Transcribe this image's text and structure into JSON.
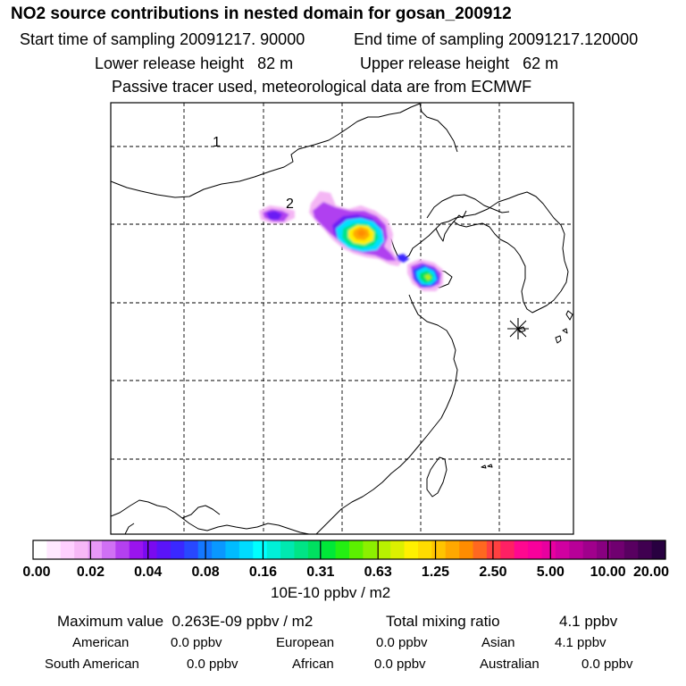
{
  "header": {
    "title": "NO2 source contributions in nested domain for gosan_200912",
    "start_time": "Start time of sampling 20091217. 90000",
    "end_time": "End time of sampling 20091217.120000",
    "lower_release": "Lower release height   82 m",
    "upper_release": "Upper release height   62 m",
    "tracer_note": "Passive tracer used, meteorological data are from ECMWF"
  },
  "map": {
    "labels": [
      {
        "id": "source-marker-2",
        "text": "2"
      },
      {
        "id": "source-marker-1",
        "text": "1"
      }
    ],
    "receptor": "star-marker",
    "gridlines": "dashed"
  },
  "colorbar": {
    "tick_labels": [
      "0.00",
      "0.02",
      "0.04",
      "0.08",
      "0.16",
      "0.31",
      "0.63",
      "1.25",
      "2.50",
      "5.00",
      "10.00",
      "20.00"
    ],
    "colors": [
      "#ffffff",
      "#ffe8ff",
      "#ffd0ff",
      "#f7b8f7",
      "#e898f8",
      "#d070f4",
      "#b440f0",
      "#9a14ee",
      "#7a0af0",
      "#5a14f8",
      "#3a28ff",
      "#2848ff",
      "#1478ff",
      "#0a98ff",
      "#00bcff",
      "#00dcff",
      "#00ffff",
      "#00f0d8",
      "#00e8b0",
      "#00e486",
      "#00e060",
      "#00e838",
      "#24ef12",
      "#5cf000",
      "#8cf000",
      "#b8f200",
      "#dcf000",
      "#fff000",
      "#ffdc00",
      "#ffc400",
      "#ffa800",
      "#ff8c00",
      "#ff6820",
      "#ff4040",
      "#ff2064",
      "#ff0890",
      "#f8009c",
      "#e800a0",
      "#d000a0",
      "#b80098",
      "#a0008c",
      "#880080",
      "#700070",
      "#580060",
      "#400050",
      "#280040"
    ],
    "units": "10E-10 ppbv / m2"
  },
  "stats": {
    "maximum": "Maximum value  0.263E-09 ppbv / m2",
    "total_label": "Total mixing ratio",
    "total_value": "4.1 ppbv",
    "regions": [
      {
        "name": "American",
        "value": "0.0 ppbv"
      },
      {
        "name": "European",
        "value": "0.0 ppbv"
      },
      {
        "name": "Asian",
        "value": "4.1 ppbv"
      },
      {
        "name": "South American",
        "value": "0.0 ppbv"
      },
      {
        "name": "African",
        "value": "0.0 ppbv"
      },
      {
        "name": "Australian",
        "value": "0.0 ppbv"
      }
    ]
  }
}
